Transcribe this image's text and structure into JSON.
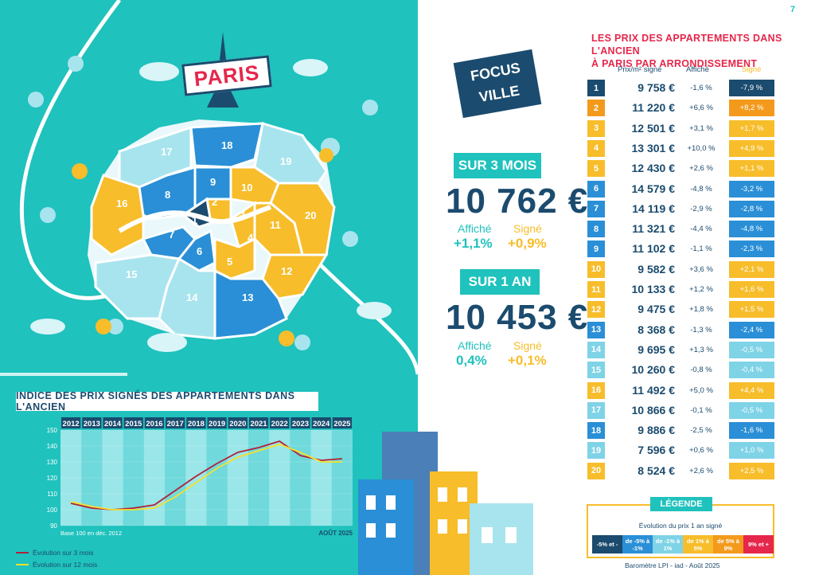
{
  "page_number": "7",
  "map": {
    "title": "PARIS",
    "arrondissements": [
      "1",
      "2",
      "3",
      "4",
      "5",
      "6",
      "7",
      "8",
      "9",
      "10",
      "11",
      "12",
      "13",
      "14",
      "15",
      "16",
      "17",
      "18",
      "19",
      "20"
    ]
  },
  "focus": {
    "line1": "FOCUS",
    "line2": "VILLE"
  },
  "three_months": {
    "label": "SUR 3 MOIS",
    "price": "10 762 €",
    "affiche_label": "Affiché",
    "affiche_value": "+1,1%",
    "signe_label": "Signé",
    "signe_value": "+0,9%"
  },
  "one_year": {
    "label": "SUR 1 AN",
    "price": "10 453 €",
    "affiche_label": "Affiché",
    "affiche_value": "0,4%",
    "signe_label": "Signé",
    "signe_value": "+0,1%"
  },
  "table": {
    "title_line1": "LES PRIX DES APPARTEMENTS DANS L'ANCIEN",
    "title_line2": "À PARIS PAR ARRONDISSEMENT",
    "col_price": "Prix/m² signé",
    "col_affiche": "Affiché",
    "col_signe": "Signé",
    "rows": [
      {
        "n": "1",
        "price": "9 758 €",
        "aff": "-1,6 %",
        "sig": "-7,9 %",
        "color": "#1b4b6e"
      },
      {
        "n": "2",
        "price": "11 220 €",
        "aff": "+6,6 %",
        "sig": "+8,2 %",
        "color": "#f39a1c"
      },
      {
        "n": "3",
        "price": "12 501 €",
        "aff": "+3,1 %",
        "sig": "+1,7 %",
        "color": "#f7bd2a"
      },
      {
        "n": "4",
        "price": "13 301 €",
        "aff": "+10,0 %",
        "sig": "+4,9 %",
        "color": "#f7bd2a"
      },
      {
        "n": "5",
        "price": "12 430 €",
        "aff": "+2,6 %",
        "sig": "+1,1 %",
        "color": "#f7bd2a"
      },
      {
        "n": "6",
        "price": "14 579 €",
        "aff": "-4,8 %",
        "sig": "-3,2 %",
        "color": "#2a8fd6"
      },
      {
        "n": "7",
        "price": "14 119 €",
        "aff": "-2,9 %",
        "sig": "-2,8 %",
        "color": "#2a8fd6"
      },
      {
        "n": "8",
        "price": "11 321 €",
        "aff": "-4,4 %",
        "sig": "-4,8 %",
        "color": "#2a8fd6"
      },
      {
        "n": "9",
        "price": "11 102 €",
        "aff": "-1,1 %",
        "sig": "-2,3 %",
        "color": "#2a8fd6"
      },
      {
        "n": "10",
        "price": "9 582 €",
        "aff": "+3,6 %",
        "sig": "+2,1 %",
        "color": "#f7bd2a"
      },
      {
        "n": "11",
        "price": "10 133 €",
        "aff": "+1,2 %",
        "sig": "+1,6 %",
        "color": "#f7bd2a"
      },
      {
        "n": "12",
        "price": "9 475 €",
        "aff": "+1,8 %",
        "sig": "+1,5 %",
        "color": "#f7bd2a"
      },
      {
        "n": "13",
        "price": "8 368 €",
        "aff": "-1,3 %",
        "sig": "-2,4 %",
        "color": "#2a8fd6"
      },
      {
        "n": "14",
        "price": "9 695 €",
        "aff": "+1,3 %",
        "sig": "-0,5 %",
        "color": "#7fd3e6"
      },
      {
        "n": "15",
        "price": "10 260 €",
        "aff": "-0,8 %",
        "sig": "-0,4 %",
        "color": "#7fd3e6"
      },
      {
        "n": "16",
        "price": "11 492 €",
        "aff": "+5,0 %",
        "sig": "+4,4 %",
        "color": "#f7bd2a"
      },
      {
        "n": "17",
        "price": "10 866 €",
        "aff": "-0,1 %",
        "sig": "-0,5 %",
        "color": "#7fd3e6"
      },
      {
        "n": "18",
        "price": "9 886 €",
        "aff": "-2,5 %",
        "sig": "-1,6 %",
        "color": "#2a8fd6"
      },
      {
        "n": "19",
        "price": "7 596 €",
        "aff": "+0,6 %",
        "sig": "+1,0 %",
        "color": "#7fd3e6"
      },
      {
        "n": "20",
        "price": "8 524 €",
        "aff": "+2,6 %",
        "sig": "+2,5 %",
        "color": "#f7bd2a"
      }
    ]
  },
  "legend": {
    "title": "LÉGENDE",
    "subtitle": "Évolution du prix 1 an signé",
    "items": [
      {
        "label": "-5% et -",
        "color": "#1b4b6e"
      },
      {
        "label": "de -5% à -1%",
        "color": "#2a8fd6"
      },
      {
        "label": "de -1% à 1%",
        "color": "#7fd3e6"
      },
      {
        "label": "de 1% à 5%",
        "color": "#f7bd2a"
      },
      {
        "label": "de 5% à 9%",
        "color": "#f39a1c"
      },
      {
        "label": "9% et +",
        "color": "#e5274b"
      }
    ]
  },
  "footer": "Baromètre LPI - iad - Août 2025",
  "chart_title": "INDICE DES PRIX SIGNÉS DES APPARTEMENTS DANS L'ANCIEN",
  "chart_data": {
    "type": "line",
    "x": [
      "2012",
      "2013",
      "2014",
      "2015",
      "2016",
      "2017",
      "2018",
      "2019",
      "2020",
      "2021",
      "2022",
      "2023",
      "2024",
      "2025"
    ],
    "ylim": [
      90,
      150
    ],
    "yticks": [
      "150",
      "140",
      "130",
      "120",
      "110",
      "100",
      "90"
    ],
    "series": [
      {
        "name": "Évolution sur 3 mois",
        "color": "#b0203a",
        "values": [
          104,
          101,
          100,
          101,
          103,
          112,
          121,
          129,
          136,
          139,
          143,
          134,
          131,
          132
        ]
      },
      {
        "name": "Évolution sur 12 mois",
        "color": "#f7e02a",
        "values": [
          105,
          102,
          100,
          100,
          101,
          108,
          117,
          126,
          133,
          137,
          141,
          136,
          130,
          130
        ]
      }
    ],
    "note_left": "Base 100 en déc. 2012",
    "note_right": "AOÛT 2025"
  }
}
